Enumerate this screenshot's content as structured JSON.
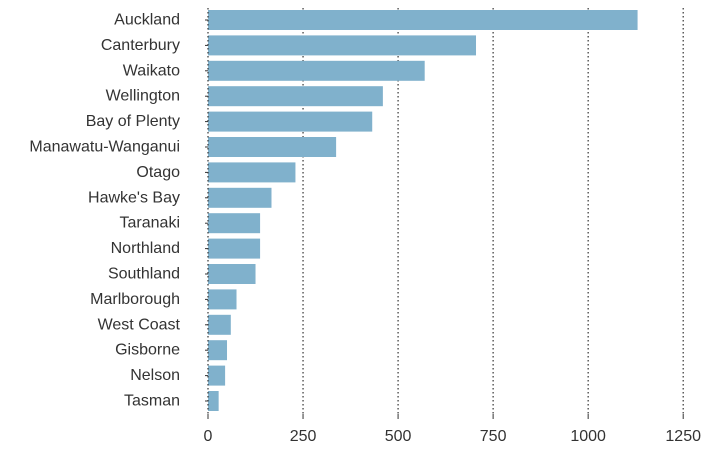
{
  "chart_data": {
    "type": "bar",
    "orientation": "horizontal",
    "title": "",
    "xlabel": "",
    "ylabel": "",
    "categories": [
      "Auckland",
      "Canterbury",
      "Waikato",
      "Wellington",
      "Bay of Plenty",
      "Manawatu-Wanganui",
      "Otago",
      "Hawke's Bay",
      "Taranaki",
      "Northland",
      "Southland",
      "Marlborough",
      "West Coast",
      "Gisborne",
      "Nelson",
      "Tasman"
    ],
    "values": [
      1130,
      705,
      570,
      460,
      432,
      337,
      230,
      167,
      137,
      137,
      125,
      75,
      60,
      50,
      45,
      28
    ],
    "xlim": [
      0,
      1260
    ],
    "xticks": [
      0,
      250,
      500,
      750,
      1000,
      1250
    ],
    "xtick_labels": [
      "0",
      "250",
      "500",
      "750",
      "1000",
      "1250"
    ],
    "grid": "vertical-dotted",
    "bar_color": "#80b1cc"
  }
}
